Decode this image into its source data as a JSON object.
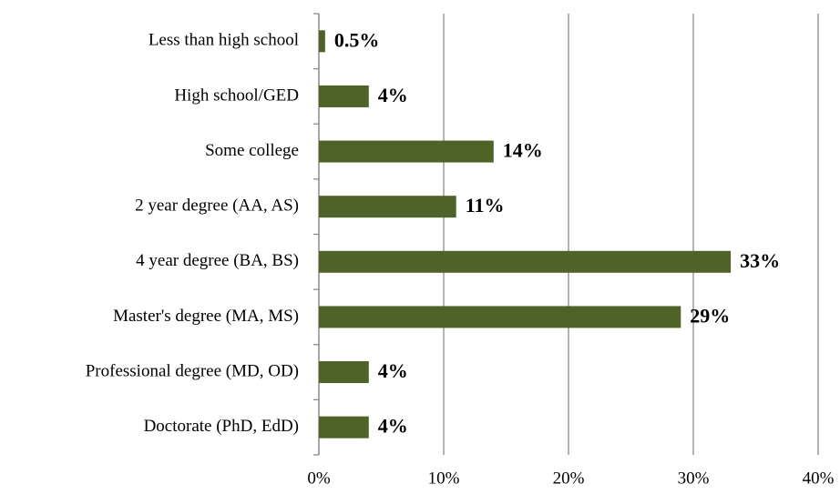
{
  "chart_data": {
    "type": "bar",
    "orientation": "horizontal",
    "categories": [
      "Less than high school",
      "High school/GED",
      "Some college",
      "2 year degree (AA, AS)",
      "4 year degree (BA, BS)",
      "Master's degree (MA, MS)",
      "Professional degree (MD, OD)",
      "Doctorate (PhD, EdD)"
    ],
    "values": [
      0.5,
      4,
      14,
      11,
      33,
      29,
      4,
      4
    ],
    "value_labels": [
      "0.5%",
      "4%",
      "14%",
      "11%",
      "33%",
      "29%",
      "4%",
      "4%"
    ],
    "color": "#4f6228",
    "xlim": [
      0,
      40
    ],
    "xticks": [
      {
        "value": 0,
        "label": "0%"
      },
      {
        "value": 10,
        "label": "10%"
      },
      {
        "value": 20,
        "label": "20%"
      },
      {
        "value": 30,
        "label": "30%"
      },
      {
        "value": 40,
        "label": "40%"
      }
    ],
    "grid": true
  }
}
